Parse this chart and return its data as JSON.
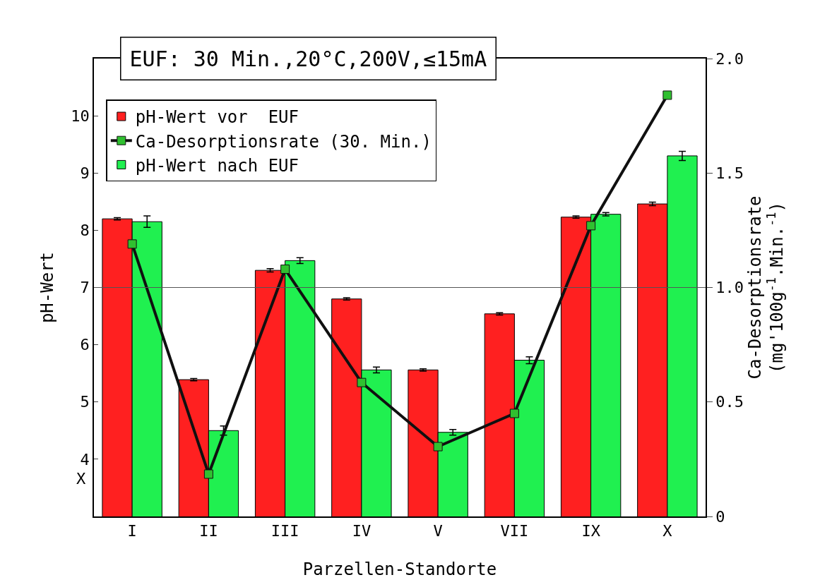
{
  "chart_data": {
    "type": "bar",
    "title": "EUF: 30 Min.,20°C,200V,≤15mA",
    "xlabel": "Parzellen-Standorte",
    "ylabel": "pH-Wert",
    "y2label": "Ca-Desorptionsrate\n(mg'100g$^{-1}$.Min.$^{-1}$)",
    "categories": [
      "I",
      "II",
      "III",
      "IV",
      "V",
      "VII",
      "IX",
      "X"
    ],
    "series": [
      {
        "name": "pH-Wert vor  EUF",
        "color": "#ff2020",
        "values": [
          8.2,
          5.39,
          7.3,
          6.8,
          5.56,
          6.54,
          8.23,
          8.46
        ],
        "errors": [
          0.02,
          0.02,
          0.03,
          0.02,
          0.02,
          0.02,
          0.02,
          0.03
        ]
      },
      {
        "name": "Ca-Desorptionsrate (30. Min.)",
        "type": "line",
        "axis": "y2",
        "color": "#101010",
        "marker": "square",
        "line_style": "solid",
        "values": [
          1.19,
          0.185,
          1.08,
          0.585,
          0.305,
          0.45,
          1.27,
          1.84
        ]
      },
      {
        "name": "pH-Wert nach EUF",
        "color": "#20f050",
        "values": [
          8.15,
          4.5,
          7.47,
          5.56,
          4.47,
          5.73,
          8.28,
          9.3
        ],
        "errors": [
          0.1,
          0.08,
          0.05,
          0.05,
          0.05,
          0.06,
          0.03,
          0.08
        ]
      }
    ],
    "ylim": [
      3,
      11
    ],
    "yticks": [
      4,
      5,
      6,
      7,
      8,
      9,
      10
    ],
    "y2lim": [
      0,
      2
    ],
    "y2ticks": [
      0,
      0.5,
      {
        "value": 1,
        "label": "1.0"
      },
      1.5,
      {
        "value": 2,
        "label": "2.0"
      }
    ],
    "ref_lines": [
      {
        "axis": "y",
        "value": 7,
        "color": "#555555"
      }
    ],
    "annotations": [
      "X"
    ],
    "grid": false,
    "legend": "top left"
  }
}
